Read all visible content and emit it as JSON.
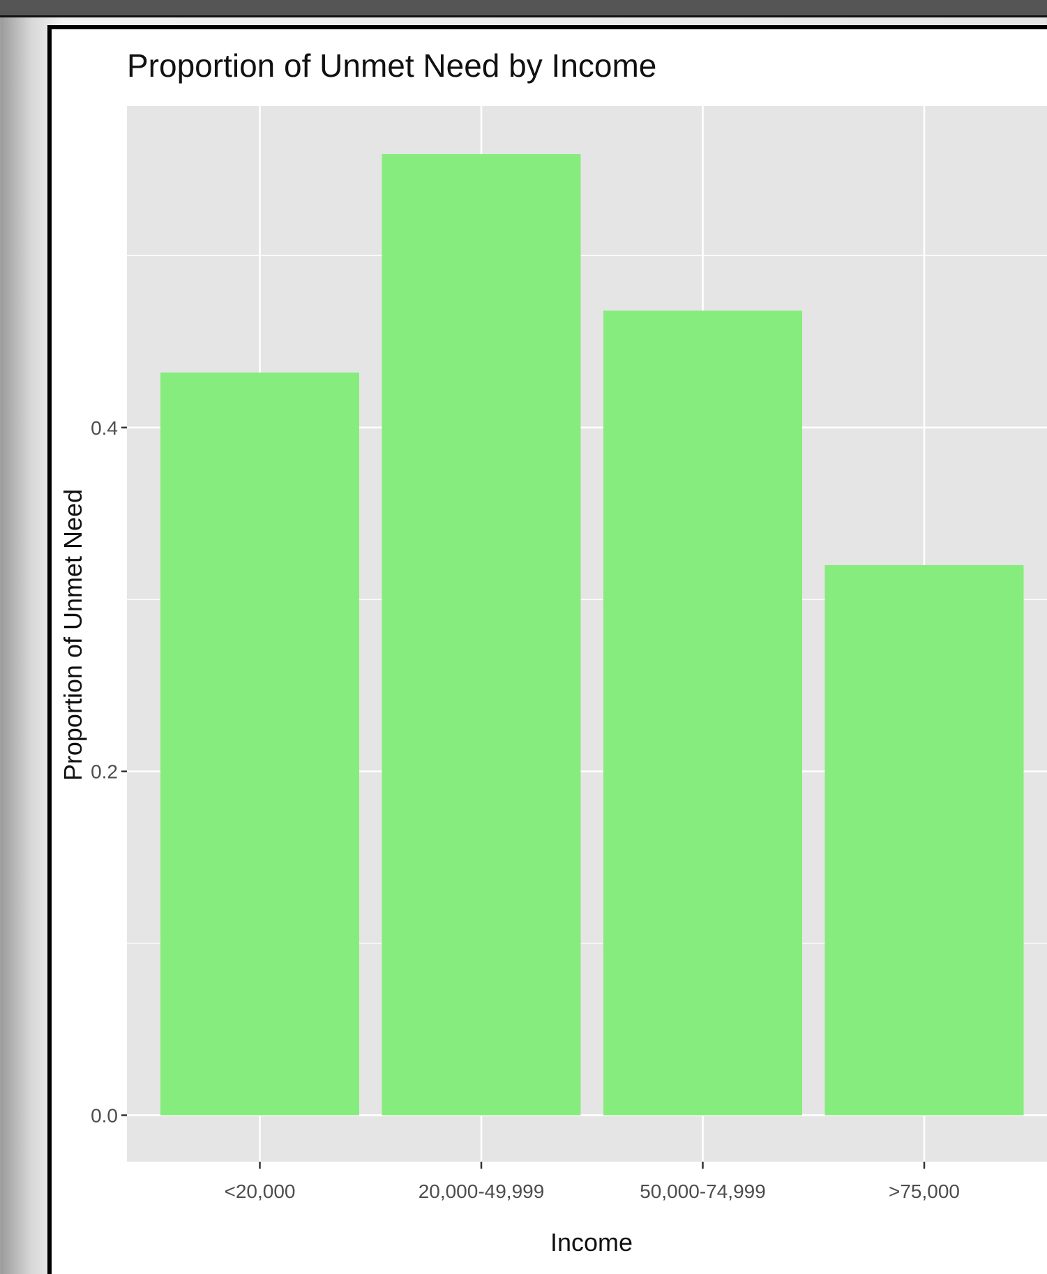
{
  "chart_data": {
    "type": "bar",
    "title": "Proportion of Unmet Need by Income",
    "xlabel": "Income",
    "ylabel": "Proportion of Unmet Need",
    "categories": [
      "<20,000",
      "20,000-49,999",
      "50,000-74,999",
      ">75,000"
    ],
    "values": [
      0.432,
      0.559,
      0.468,
      0.32
    ],
    "ylim": [
      -0.027,
      0.587
    ],
    "yticks": [
      "0.0",
      "0.2",
      "0.4"
    ],
    "yticks_values": [
      0.0,
      0.2,
      0.4
    ],
    "grid": true,
    "colors": {
      "bar": "#86ec7d",
      "panel": "#e5e5e5",
      "grid": "#ffffff"
    }
  }
}
